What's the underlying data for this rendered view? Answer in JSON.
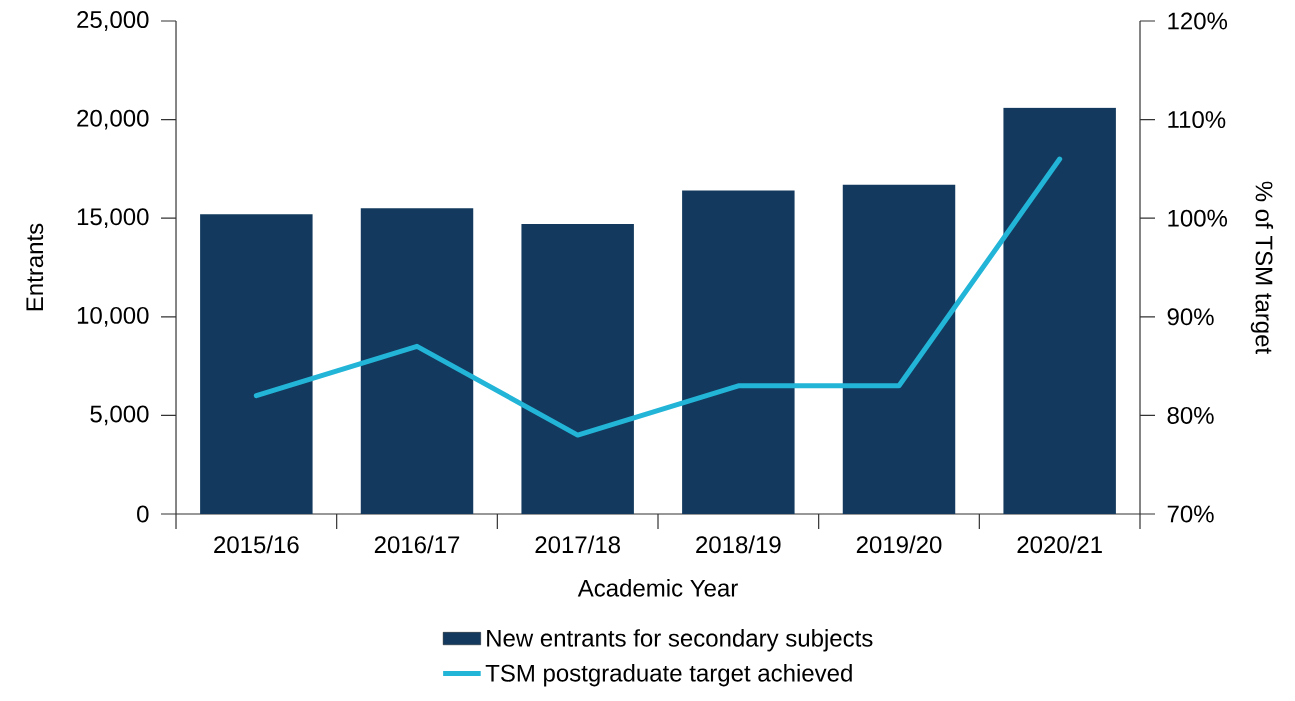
{
  "chart_data": {
    "type": "bar",
    "categories": [
      "2015/16",
      "2016/17",
      "2017/18",
      "2018/19",
      "2019/20",
      "2020/21"
    ],
    "xlabel": "Academic Year",
    "ylabel": "Entrants",
    "y2label": "% of TSM target",
    "series": [
      {
        "name": "New entrants for secondary subjects",
        "color": "#133a5e",
        "values": [
          15200,
          15500,
          14700,
          16400,
          16700,
          20600
        ]
      },
      {
        "name": "TSM postgraduate target achieved",
        "type": "line",
        "axis": "y2",
        "color": "#22b5d8",
        "values": [
          82,
          87,
          78,
          83,
          83,
          106
        ]
      }
    ],
    "ylim": [
      0,
      25000
    ],
    "yticks": [
      {
        "value": 0,
        "label": "0"
      },
      {
        "value": 5000,
        "label": "5,000"
      },
      {
        "value": 10000,
        "label": "10,000"
      },
      {
        "value": 15000,
        "label": "15,000"
      },
      {
        "value": 20000,
        "label": "20,000"
      },
      {
        "value": 25000,
        "label": "25,000"
      }
    ],
    "y2lim": [
      70,
      120
    ],
    "y2ticks": [
      {
        "value": 70,
        "label": "70%"
      },
      {
        "value": 80,
        "label": "80%"
      },
      {
        "value": 90,
        "label": "90%"
      },
      {
        "value": 100,
        "label": "100%"
      },
      {
        "value": 110,
        "label": "110%"
      },
      {
        "value": 120,
        "label": "120%"
      }
    ],
    "legend": "bottom"
  }
}
